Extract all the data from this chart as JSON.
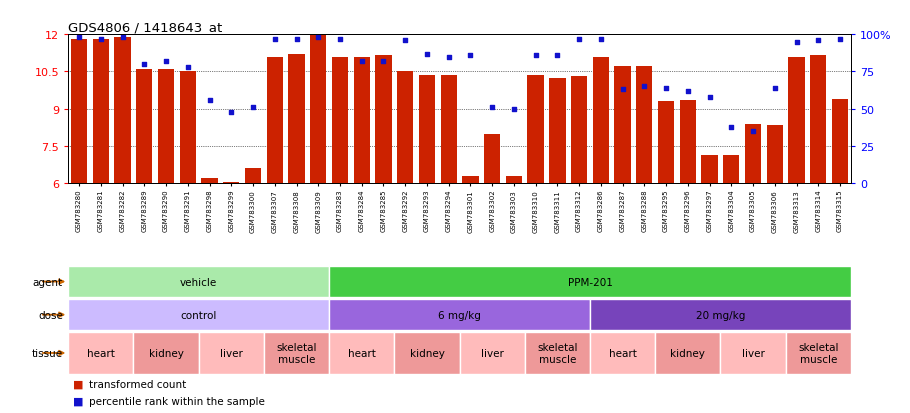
{
  "title": "GDS4806 / 1418643_at",
  "samples": [
    "GSM783280",
    "GSM783281",
    "GSM783282",
    "GSM783289",
    "GSM783290",
    "GSM783291",
    "GSM783298",
    "GSM783299",
    "GSM783300",
    "GSM783307",
    "GSM783308",
    "GSM783309",
    "GSM783283",
    "GSM783284",
    "GSM783285",
    "GSM783292",
    "GSM783293",
    "GSM783294",
    "GSM783301",
    "GSM783302",
    "GSM783303",
    "GSM783310",
    "GSM783311",
    "GSM783312",
    "GSM783286",
    "GSM783287",
    "GSM783288",
    "GSM783295",
    "GSM783296",
    "GSM783297",
    "GSM783304",
    "GSM783305",
    "GSM783306",
    "GSM783313",
    "GSM783314",
    "GSM783315"
  ],
  "bar_values": [
    11.8,
    11.8,
    11.9,
    10.6,
    10.6,
    10.5,
    6.2,
    6.05,
    6.6,
    11.1,
    11.2,
    12.0,
    11.1,
    11.1,
    11.15,
    10.5,
    10.35,
    10.35,
    6.3,
    8.0,
    6.3,
    10.35,
    10.25,
    10.3,
    11.1,
    10.7,
    10.7,
    9.3,
    9.35,
    7.15,
    7.15,
    8.4,
    8.35,
    11.1,
    11.15,
    9.4
  ],
  "percentile_values": [
    98,
    97,
    98,
    80,
    82,
    78,
    56,
    48,
    51,
    97,
    97,
    98,
    97,
    82,
    82,
    96,
    87,
    85,
    86,
    51,
    50,
    86,
    86,
    97,
    97,
    63,
    65,
    64,
    62,
    58,
    38,
    35,
    64,
    95,
    96,
    97
  ],
  "ylim_left": [
    6,
    12
  ],
  "ylim_right": [
    0,
    100
  ],
  "yticks_left": [
    6,
    7.5,
    9,
    10.5,
    12
  ],
  "yticks_right": [
    0,
    25,
    50,
    75,
    100
  ],
  "bar_color": "#cc2200",
  "dot_color": "#1111cc",
  "bg_color": "#ffffff",
  "agent_groups": [
    {
      "label": "vehicle",
      "start": 0,
      "end": 12,
      "color": "#aaeaaa"
    },
    {
      "label": "PPM-201",
      "start": 12,
      "end": 36,
      "color": "#44cc44"
    }
  ],
  "dose_groups": [
    {
      "label": "control",
      "start": 0,
      "end": 12,
      "color": "#ccbbff"
    },
    {
      "label": "6 mg/kg",
      "start": 12,
      "end": 24,
      "color": "#9966dd"
    },
    {
      "label": "20 mg/kg",
      "start": 24,
      "end": 36,
      "color": "#7744bb"
    }
  ],
  "tissue_groups": [
    {
      "label": "heart",
      "start": 0,
      "end": 3,
      "color": "#ffbbbb"
    },
    {
      "label": "kidney",
      "start": 3,
      "end": 6,
      "color": "#ee9999"
    },
    {
      "label": "liver",
      "start": 6,
      "end": 9,
      "color": "#ffbbbb"
    },
    {
      "label": "skeletal\nmuscle",
      "start": 9,
      "end": 12,
      "color": "#ee9999"
    },
    {
      "label": "heart",
      "start": 12,
      "end": 15,
      "color": "#ffbbbb"
    },
    {
      "label": "kidney",
      "start": 15,
      "end": 18,
      "color": "#ee9999"
    },
    {
      "label": "liver",
      "start": 18,
      "end": 21,
      "color": "#ffbbbb"
    },
    {
      "label": "skeletal\nmuscle",
      "start": 21,
      "end": 24,
      "color": "#ee9999"
    },
    {
      "label": "heart",
      "start": 24,
      "end": 27,
      "color": "#ffbbbb"
    },
    {
      "label": "kidney",
      "start": 27,
      "end": 30,
      "color": "#ee9999"
    },
    {
      "label": "liver",
      "start": 30,
      "end": 33,
      "color": "#ffbbbb"
    },
    {
      "label": "skeletal\nmuscle",
      "start": 33,
      "end": 36,
      "color": "#ee9999"
    }
  ],
  "arrow_color": "#cc6600",
  "legend_items": [
    {
      "color": "#cc2200",
      "label": "transformed count"
    },
    {
      "color": "#1111cc",
      "label": "percentile rank within the sample"
    }
  ]
}
